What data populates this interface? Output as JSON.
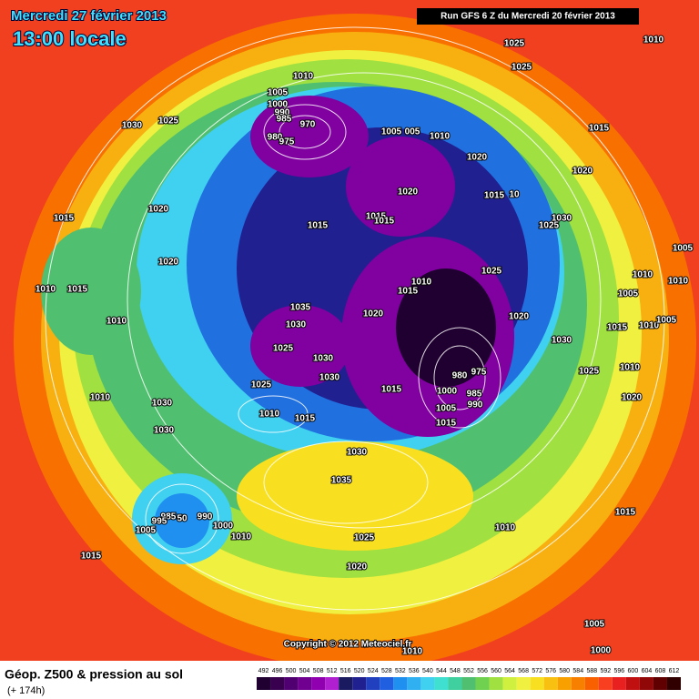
{
  "header": {
    "date": "Mercredi 27 février 2013",
    "time": "13:00 locale",
    "run": "Run GFS 6 Z du Mercredi 20 février 2013"
  },
  "map": {
    "pressure_labels": [
      "1025",
      "1010",
      "1025",
      "1010",
      "1030",
      "1025",
      "1005",
      "1000",
      "990",
      "985",
      "970",
      "980",
      "975",
      "1005",
      "005",
      "1010",
      "1015",
      "1020",
      "1020",
      "1020",
      "1015",
      "10",
      "1020",
      "1015",
      "1015",
      "1015",
      "1015",
      "1030",
      "1025",
      "1005",
      "1020",
      "1025",
      "1010",
      "1015",
      "1010",
      "1015",
      "1010",
      "1005",
      "1010",
      "1035",
      "1020",
      "1020",
      "1010",
      "1030",
      "1015",
      "1010",
      "1005",
      "1030",
      "1025",
      "1030",
      "1030",
      "1025",
      "1010",
      "975",
      "980",
      "1015",
      "1000",
      "985",
      "1010",
      "1025",
      "1030",
      "990",
      "1020",
      "1005",
      "1010",
      "1015",
      "1030",
      "1015",
      "1030",
      "1035",
      "985",
      "995",
      "50",
      "990",
      "1000",
      "1005",
      "1010",
      "1010",
      "1015",
      "1015",
      "1025",
      "1020",
      "1005",
      "1000",
      "1010"
    ],
    "copyright": "Copyright © 2012 Meteociel.fr"
  },
  "footer": {
    "title": "Géop. Z500 & pression au sol",
    "subtitle": "(+ 174h)",
    "scale": [
      492,
      496,
      500,
      504,
      508,
      512,
      516,
      520,
      524,
      528,
      532,
      536,
      540,
      544,
      548,
      552,
      556,
      560,
      564,
      568,
      572,
      576,
      580,
      584,
      588,
      592,
      596,
      600,
      604,
      608,
      612
    ]
  }
}
